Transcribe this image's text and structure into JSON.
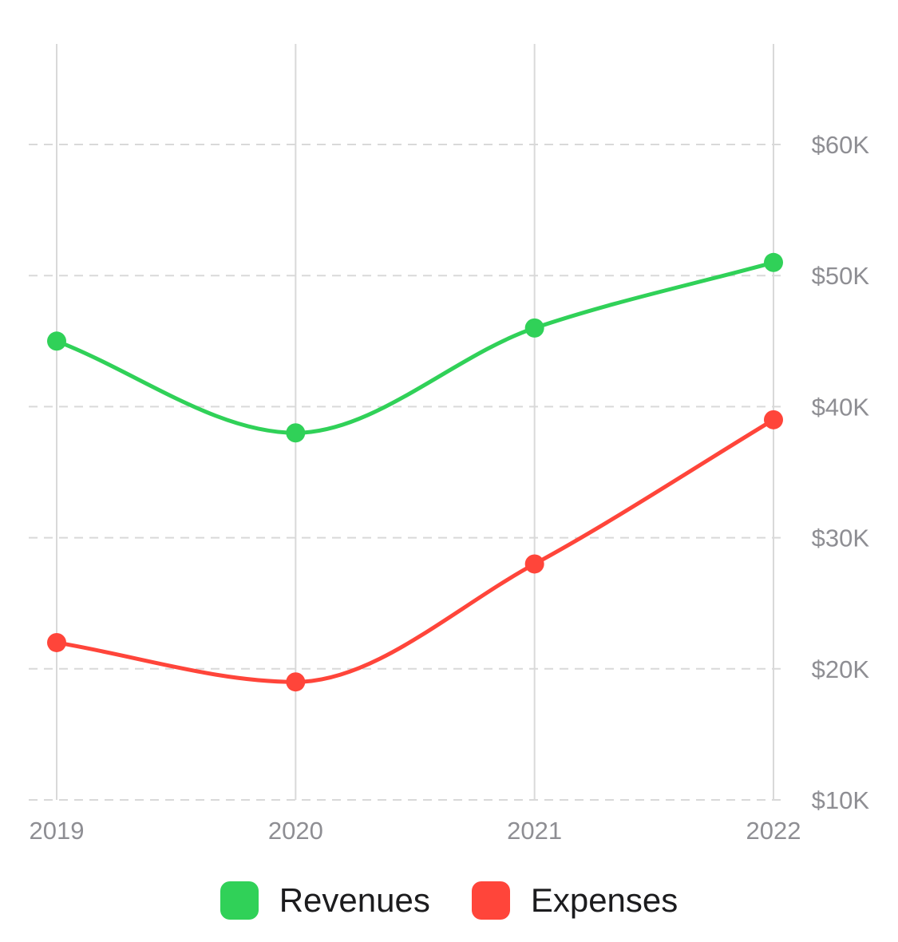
{
  "chart_data": {
    "type": "line",
    "title": "",
    "xlabel": "",
    "ylabel": "",
    "categories": [
      "2019",
      "2020",
      "2021",
      "2022"
    ],
    "y_tick_labels": [
      "$10K",
      "$20K",
      "$30K",
      "$40K",
      "$50K",
      "$60K"
    ],
    "y_ticks": [
      10000,
      20000,
      30000,
      40000,
      50000,
      60000
    ],
    "ylim": [
      10000,
      67700
    ],
    "y_axis_side": "right",
    "grid": {
      "horizontal": "dashed",
      "vertical": "solid"
    },
    "curve": "smooth",
    "legend_position": "bottom-center",
    "series": [
      {
        "name": "Revenues",
        "color": "#30d158",
        "values": [
          45000,
          38000,
          46000,
          51000
        ]
      },
      {
        "name": "Expenses",
        "color": "#ff453a",
        "values": [
          22000,
          19000,
          28000,
          39000
        ]
      }
    ]
  },
  "legend": {
    "items": [
      {
        "label": "Revenues",
        "color": "#30d158"
      },
      {
        "label": "Expenses",
        "color": "#ff453a"
      }
    ]
  }
}
